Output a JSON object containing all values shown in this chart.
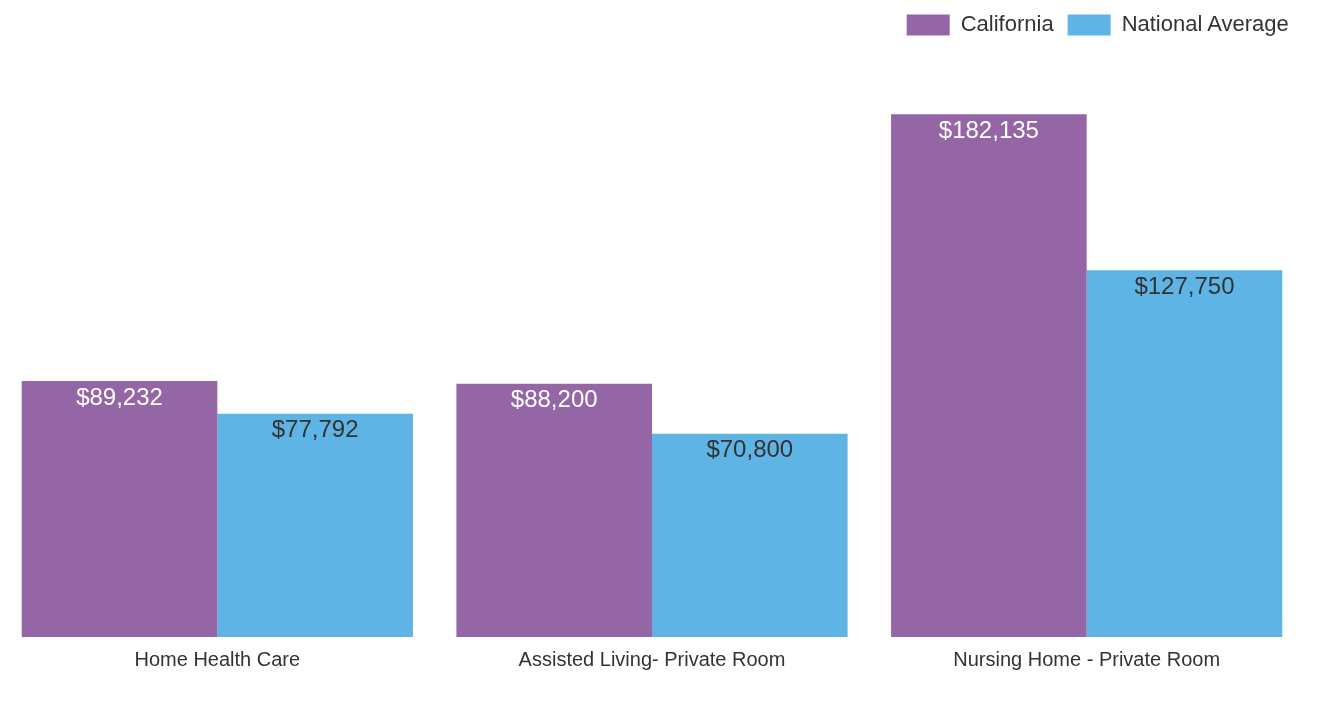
{
  "chart_data": {
    "type": "bar",
    "categories": [
      "Home Health Care",
      "Assisted Living- Private Room",
      "Nursing Home - Private Room"
    ],
    "series": [
      {
        "name": "California",
        "color": "#9566a6",
        "values": [
          89232,
          88200,
          182135
        ],
        "value_labels": [
          "$89,232",
          "$88,200",
          "$182,135"
        ]
      },
      {
        "name": "National Average",
        "color": "#5eb4e5",
        "values": [
          77792,
          70800,
          127750
        ],
        "value_labels": [
          "$77,792",
          "$70,800",
          "$127,750"
        ]
      }
    ],
    "legend": "top right",
    "grid": false
  }
}
